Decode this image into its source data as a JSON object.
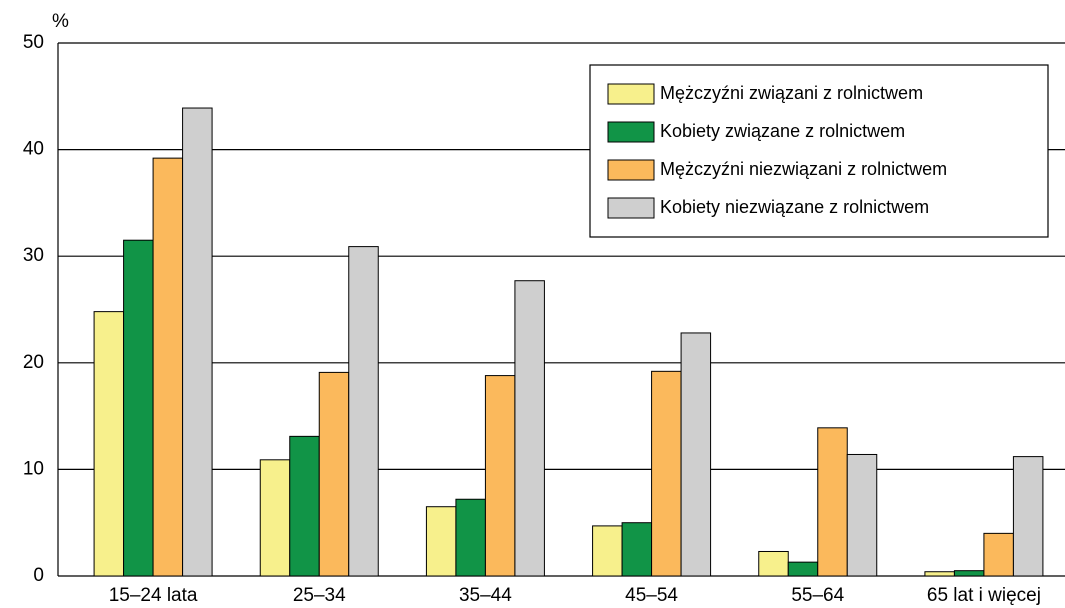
{
  "chart_data": {
    "type": "bar",
    "y_label": "%",
    "categories": [
      "15–24 lata",
      "25–34",
      "35–44",
      "45–54",
      "55–64",
      "65 lat i więcej"
    ],
    "series": [
      {
        "name": "Mężczyźni związani z rolnictwem",
        "color": "#f7f08c",
        "values": [
          24.8,
          10.9,
          6.5,
          4.7,
          2.3,
          0.4
        ]
      },
      {
        "name": "Kobiety związane z rolnictwem",
        "color": "#119447",
        "values": [
          31.5,
          13.1,
          7.2,
          5.0,
          1.3,
          0.5
        ]
      },
      {
        "name": "Mężczyźni niezwiązani z rolnictwem",
        "color": "#fbb95c",
        "values": [
          39.2,
          19.1,
          18.8,
          19.2,
          13.9,
          4.0
        ]
      },
      {
        "name": "Kobiety niezwiązane z rolnictwem",
        "color": "#cfcfcf",
        "values": [
          43.9,
          30.9,
          27.7,
          22.8,
          11.4,
          11.2
        ]
      }
    ],
    "ylim": [
      0,
      50
    ],
    "yticks": [
      0,
      10,
      20,
      30,
      40,
      50
    ],
    "grid": true,
    "legend": "upper right"
  }
}
